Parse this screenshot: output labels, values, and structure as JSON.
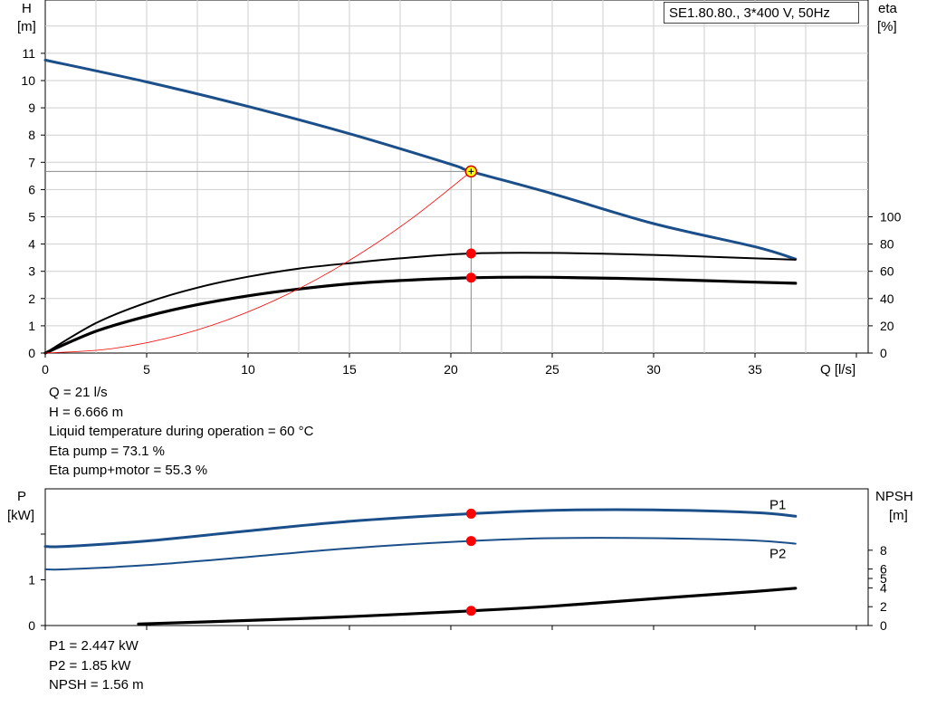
{
  "chart_data": [
    {
      "type": "line",
      "title": "SE1.80.80., 3*400 V, 50Hz",
      "xlabel": "Q [l/s]",
      "ylabel": "H\n[m]",
      "y2label": "eta\n[%]",
      "xlim": [
        0,
        40
      ],
      "ylim": [
        0,
        12
      ],
      "y2lim": [
        0,
        100
      ],
      "xticks": [
        "0",
        "5",
        "10",
        "15",
        "20",
        "25",
        "30",
        "35"
      ],
      "yticks": [
        "0",
        "1",
        "2",
        "3",
        "4",
        "5",
        "6",
        "7",
        "8",
        "9",
        "10",
        "11"
      ],
      "y2ticks": [
        "0",
        "20",
        "40",
        "60",
        "80",
        "100"
      ],
      "grid": true,
      "series": [
        {
          "axis": "H",
          "color": "#1b4f8a",
          "x": [
            0,
            5,
            10,
            15,
            20,
            21,
            25,
            30,
            35,
            37
          ],
          "y": [
            10.75,
            9.95,
            9.05,
            8.05,
            6.93,
            6.666,
            5.85,
            4.75,
            3.9,
            3.45
          ]
        },
        {
          "axis": "eta",
          "color": "#000000",
          "x": [
            0,
            2.5,
            5,
            7.5,
            10,
            12.5,
            15,
            17.5,
            21,
            25,
            30,
            35,
            37
          ],
          "y": [
            0,
            22,
            37,
            48,
            56,
            62,
            66,
            69.5,
            73.1,
            73.5,
            72,
            69.5,
            68.5
          ]
        },
        {
          "axis": "eta",
          "color": "#000000",
          "x": [
            0,
            2.5,
            5,
            7.5,
            10,
            12.5,
            15,
            17.5,
            21,
            25,
            30,
            35,
            37
          ],
          "y": [
            0,
            16,
            27,
            35.5,
            42,
            47,
            50.8,
            53.2,
            55.3,
            55.6,
            54.2,
            52,
            51.2
          ]
        },
        {
          "axis": "H",
          "color": "#ff0000",
          "x": [
            0,
            3,
            6,
            9,
            12,
            15,
            18,
            21
          ],
          "y": [
            0,
            0.136,
            0.544,
            1.224,
            2.176,
            3.401,
            4.897,
            6.666
          ]
        }
      ],
      "operating_point": {
        "x": 21,
        "y": 6.666,
        "fill": "#ffff00",
        "stroke": "#d00000"
      },
      "eta_points": [
        {
          "x": 21,
          "y": 73.1
        },
        {
          "x": 21,
          "y": 55.3
        }
      ]
    },
    {
      "type": "line",
      "xlabel": "",
      "ylabel": "P\n[kW]",
      "y2label": "NPSH\n[m]",
      "xlim": [
        0,
        40
      ],
      "ylim": [
        0,
        3
      ],
      "y2lim": [
        0,
        15
      ],
      "yticks": [
        "0",
        "1"
      ],
      "y2ticks": [
        "0",
        "2",
        "4",
        "5",
        "6",
        "8"
      ],
      "series": [
        {
          "name": "P1",
          "axis": "P",
          "color": "#1b4f8a",
          "x": [
            0,
            1,
            5,
            10,
            15,
            21,
            25,
            30,
            35,
            37
          ],
          "y": [
            1.73,
            1.73,
            1.85,
            2.07,
            2.28,
            2.447,
            2.52,
            2.53,
            2.47,
            2.39
          ]
        },
        {
          "name": "P2",
          "axis": "P",
          "color": "#1b4f8a",
          "x": [
            0,
            1,
            5,
            10,
            15,
            21,
            25,
            30,
            35,
            37
          ],
          "y": [
            1.23,
            1.23,
            1.32,
            1.5,
            1.69,
            1.85,
            1.91,
            1.91,
            1.86,
            1.79
          ]
        },
        {
          "axis": "NPSH",
          "color": "#000000",
          "x": [
            4.6,
            10,
            15,
            21,
            25,
            30,
            35,
            37
          ],
          "y": [
            0.16,
            0.54,
            0.94,
            1.56,
            2.05,
            2.85,
            3.62,
            3.96
          ]
        }
      ],
      "points": [
        {
          "axis": "P",
          "x": 21,
          "y": 2.447
        },
        {
          "axis": "P",
          "x": 21,
          "y": 1.85
        },
        {
          "axis": "NPSH",
          "x": 21,
          "y": 1.56
        }
      ]
    }
  ],
  "info_main": [
    "Q = 21 l/s",
    "H = 6.666 m",
    "Liquid temperature during operation = 60 °C",
    "Eta pump = 73.1 %",
    "Eta pump+motor = 55.3 %"
  ],
  "info_power": [
    "P1 = 2.447 kW",
    "P2 = 1.85 kW",
    "NPSH = 1.56 m"
  ]
}
